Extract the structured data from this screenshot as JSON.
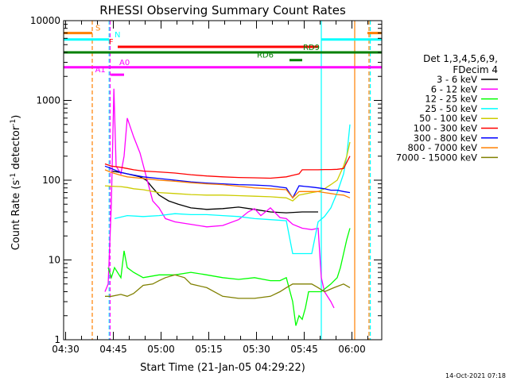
{
  "chart_data": {
    "type": "line",
    "title": "RHESSI Observing Summary Count Rates",
    "xlabel": "Start Time (21-Jan-05 04:29:22)",
    "ylabel_main": "Count Rate (s",
    "ylabel_sup1": "-1",
    "ylabel_mid": " detector",
    "ylabel_sup2": "-1",
    "ylabel_end": ")",
    "x_unit": "minutes since 04:29:22",
    "xlim": [
      0,
      100
    ],
    "ylim": [
      1,
      10000
    ],
    "yscale": "log",
    "x_ticks": [
      {
        "label": "04:30",
        "value": 0.63
      },
      {
        "label": "04:45",
        "value": 15.63
      },
      {
        "label": "05:00",
        "value": 30.63
      },
      {
        "label": "05:15",
        "value": 45.63
      },
      {
        "label": "05:30",
        "value": 60.63
      },
      {
        "label": "05:45",
        "value": 75.63
      },
      {
        "label": "06:00",
        "value": 90.63
      }
    ],
    "y_ticks": [
      {
        "label": "1",
        "value": 1
      },
      {
        "label": "10",
        "value": 10
      },
      {
        "label": "100",
        "value": 100
      },
      {
        "label": "1000",
        "value": 1000
      },
      {
        "label": "10000",
        "value": 10000
      }
    ],
    "legend_title_1": "Det 1,3,4,5,6,9,",
    "legend_title_2": "FDecim 4",
    "legend_placement": "right",
    "series": [
      {
        "name": "3 - 6 keV",
        "color": "#000000",
        "points": [
          [
            15,
            130
          ],
          [
            18,
            125
          ],
          [
            20,
            120
          ],
          [
            22,
            115
          ],
          [
            24,
            110
          ],
          [
            26,
            100
          ],
          [
            28,
            80
          ],
          [
            30,
            65
          ],
          [
            33,
            55
          ],
          [
            36,
            50
          ],
          [
            40,
            45
          ],
          [
            45,
            43
          ],
          [
            50,
            44
          ],
          [
            55,
            46
          ],
          [
            60,
            43
          ],
          [
            65,
            40
          ],
          [
            70,
            39
          ],
          [
            75,
            40
          ],
          [
            78,
            40
          ],
          [
            80,
            40
          ]
        ]
      },
      {
        "name": "6 - 12 keV",
        "color": "#ff00ff",
        "points": [
          [
            13,
            4
          ],
          [
            14,
            5
          ],
          [
            15,
            50
          ],
          [
            15.8,
            1400
          ],
          [
            16.5,
            150
          ],
          [
            18,
            120
          ],
          [
            19,
            200
          ],
          [
            20,
            600
          ],
          [
            22,
            350
          ],
          [
            24,
            220
          ],
          [
            26,
            110
          ],
          [
            28,
            55
          ],
          [
            30,
            45
          ],
          [
            32,
            33
          ],
          [
            35,
            30
          ],
          [
            40,
            28
          ],
          [
            45,
            26
          ],
          [
            50,
            27
          ],
          [
            55,
            32
          ],
          [
            58,
            40
          ],
          [
            60,
            44
          ],
          [
            62,
            36
          ],
          [
            65,
            45
          ],
          [
            68,
            34
          ],
          [
            70,
            33
          ],
          [
            72,
            28
          ],
          [
            75,
            25
          ],
          [
            78,
            24
          ],
          [
            80,
            25
          ],
          [
            81,
            6
          ],
          [
            82,
            4
          ],
          [
            84,
            3
          ],
          [
            85,
            2.5
          ]
        ]
      },
      {
        "name": "12 - 25 keV",
        "color": "#00ff00",
        "points": [
          [
            14,
            8
          ],
          [
            15,
            6
          ],
          [
            16,
            8
          ],
          [
            18,
            6
          ],
          [
            19,
            13
          ],
          [
            20,
            8
          ],
          [
            22,
            7
          ],
          [
            25,
            6
          ],
          [
            30,
            6.5
          ],
          [
            35,
            6.5
          ],
          [
            40,
            7
          ],
          [
            45,
            6.5
          ],
          [
            50,
            6
          ],
          [
            55,
            5.7
          ],
          [
            60,
            6
          ],
          [
            65,
            5.5
          ],
          [
            68,
            5.5
          ],
          [
            70,
            6
          ],
          [
            72,
            3
          ],
          [
            73,
            1.5
          ],
          [
            74,
            2
          ],
          [
            75,
            1.8
          ],
          [
            76,
            2.5
          ],
          [
            77,
            4
          ],
          [
            79,
            4
          ],
          [
            81,
            4
          ],
          [
            84,
            5
          ],
          [
            86,
            6
          ],
          [
            87,
            8
          ],
          [
            88,
            12
          ],
          [
            89,
            18
          ],
          [
            90,
            25
          ]
        ]
      },
      {
        "name": "25 - 50 keV",
        "color": "#00ffff",
        "points": [
          [
            16,
            33
          ],
          [
            20,
            36
          ],
          [
            25,
            35
          ],
          [
            30,
            36
          ],
          [
            35,
            38
          ],
          [
            40,
            37
          ],
          [
            45,
            37
          ],
          [
            50,
            36
          ],
          [
            55,
            35
          ],
          [
            60,
            33
          ],
          [
            65,
            32
          ],
          [
            70,
            31
          ],
          [
            72,
            12
          ],
          [
            75,
            12
          ],
          [
            78,
            12
          ],
          [
            80,
            30
          ],
          [
            82,
            35
          ],
          [
            84,
            45
          ],
          [
            86,
            70
          ],
          [
            88,
            120
          ],
          [
            89,
            200
          ],
          [
            90,
            500
          ]
        ]
      },
      {
        "name": "50 - 100 keV",
        "color": "#cccc00",
        "points": [
          [
            13,
            85
          ],
          [
            15,
            84
          ],
          [
            18,
            83
          ],
          [
            20,
            81
          ],
          [
            22,
            78
          ],
          [
            25,
            76
          ],
          [
            30,
            70
          ],
          [
            35,
            68
          ],
          [
            40,
            66
          ],
          [
            45,
            65
          ],
          [
            50,
            65
          ],
          [
            55,
            64
          ],
          [
            60,
            63
          ],
          [
            65,
            62
          ],
          [
            70,
            60
          ],
          [
            72,
            55
          ],
          [
            74,
            65
          ],
          [
            78,
            70
          ],
          [
            80,
            72
          ],
          [
            82,
            78
          ],
          [
            84,
            88
          ],
          [
            86,
            100
          ],
          [
            88,
            150
          ],
          [
            89,
            200
          ],
          [
            90,
            300
          ]
        ]
      },
      {
        "name": "100 - 300 keV",
        "color": "#ff0000",
        "points": [
          [
            13,
            160
          ],
          [
            15,
            150
          ],
          [
            18,
            145
          ],
          [
            20,
            140
          ],
          [
            22,
            135
          ],
          [
            25,
            130
          ],
          [
            30,
            127
          ],
          [
            35,
            123
          ],
          [
            40,
            117
          ],
          [
            45,
            113
          ],
          [
            50,
            110
          ],
          [
            55,
            108
          ],
          [
            60,
            107
          ],
          [
            65,
            106
          ],
          [
            70,
            110
          ],
          [
            72,
            115
          ],
          [
            74,
            120
          ],
          [
            75,
            135
          ],
          [
            78,
            135
          ],
          [
            80,
            135
          ],
          [
            82,
            136
          ],
          [
            84,
            136
          ],
          [
            86,
            137
          ],
          [
            88,
            140
          ],
          [
            90,
            200
          ]
        ]
      },
      {
        "name": "300 - 800 keV",
        "color": "#0000ff",
        "points": [
          [
            13,
            150
          ],
          [
            15,
            140
          ],
          [
            18,
            125
          ],
          [
            20,
            120
          ],
          [
            25,
            110
          ],
          [
            30,
            105
          ],
          [
            35,
            100
          ],
          [
            40,
            95
          ],
          [
            45,
            92
          ],
          [
            50,
            90
          ],
          [
            55,
            88
          ],
          [
            60,
            87
          ],
          [
            65,
            85
          ],
          [
            70,
            80
          ],
          [
            72,
            60
          ],
          [
            74,
            85
          ],
          [
            78,
            82
          ],
          [
            80,
            80
          ],
          [
            82,
            78
          ],
          [
            84,
            75
          ],
          [
            86,
            75
          ],
          [
            88,
            72
          ],
          [
            90,
            70
          ]
        ]
      },
      {
        "name": "800 - 7000 keV",
        "color": "#ff8000",
        "points": [
          [
            13,
            135
          ],
          [
            15,
            125
          ],
          [
            18,
            115
          ],
          [
            20,
            110
          ],
          [
            25,
            105
          ],
          [
            30,
            100
          ],
          [
            35,
            97
          ],
          [
            40,
            93
          ],
          [
            45,
            90
          ],
          [
            50,
            88
          ],
          [
            55,
            84
          ],
          [
            60,
            80
          ],
          [
            65,
            78
          ],
          [
            70,
            76
          ],
          [
            72,
            60
          ],
          [
            74,
            72
          ],
          [
            78,
            72
          ],
          [
            80,
            72
          ],
          [
            82,
            70
          ],
          [
            84,
            68
          ],
          [
            86,
            66
          ],
          [
            88,
            65
          ],
          [
            90,
            60
          ]
        ]
      },
      {
        "name": "7000 - 15000 keV",
        "color": "#808000",
        "points": [
          [
            13,
            3.5
          ],
          [
            15,
            3.5
          ],
          [
            18,
            3.7
          ],
          [
            20,
            3.5
          ],
          [
            22,
            3.8
          ],
          [
            25,
            4.8
          ],
          [
            28,
            5
          ],
          [
            30,
            5.5
          ],
          [
            32,
            6
          ],
          [
            35,
            6.5
          ],
          [
            38,
            6
          ],
          [
            40,
            5
          ],
          [
            45,
            4.5
          ],
          [
            50,
            3.5
          ],
          [
            55,
            3.3
          ],
          [
            60,
            3.3
          ],
          [
            65,
            3.5
          ],
          [
            68,
            4
          ],
          [
            70,
            4.5
          ],
          [
            72,
            5
          ],
          [
            75,
            5
          ],
          [
            78,
            5
          ],
          [
            80,
            4.5
          ],
          [
            82,
            4
          ],
          [
            85,
            4.5
          ],
          [
            88,
            5
          ],
          [
            90,
            4.5
          ]
        ]
      }
    ],
    "vertical_lines": [
      {
        "x": 9,
        "color": "#ff8000",
        "style": "dashed"
      },
      {
        "x": 14.3,
        "color": "#00ffff",
        "style": "dashed"
      },
      {
        "x": 14.6,
        "color": "#ff00ff",
        "style": "dashed"
      },
      {
        "x": 81,
        "color": "#00ffff",
        "style": "solid"
      },
      {
        "x": 91.5,
        "color": "#ff8000",
        "style": "solid"
      },
      {
        "x": 96,
        "color": "#ff8000",
        "style": "dashed"
      },
      {
        "x": 96.4,
        "color": "#00ffff",
        "style": "dashed"
      }
    ],
    "flag_bars": [
      {
        "label": "S",
        "color": "#ff8000",
        "segments": [
          [
            0,
            9
          ],
          [
            95.5,
            100
          ]
        ],
        "y": 7000
      },
      {
        "label": "N",
        "color": "#00ffff",
        "segments": [
          [
            0,
            14.3
          ],
          [
            81,
            100
          ]
        ],
        "y": 5800
      },
      {
        "label": "F",
        "color": "#ff0000",
        "segments": [
          [
            17,
            80
          ]
        ],
        "y": 4700
      },
      {
        "label": "RD9",
        "color": "#008000",
        "segments": [
          [
            0,
            100
          ]
        ],
        "y": 4000
      },
      {
        "label": "RD6",
        "color": "#008000",
        "segments": [
          [
            71,
            75
          ]
        ],
        "y": 3200
      },
      {
        "label": "A0",
        "color": "#ff00ff",
        "segments": [
          [
            0,
            100
          ]
        ],
        "y": 2600
      },
      {
        "label": "A1",
        "color": "#ff00ff",
        "segments": [
          [
            14.8,
            19
          ]
        ],
        "y": 2100
      }
    ]
  },
  "footer_timestamp": "14-Oct-2021 07:18"
}
